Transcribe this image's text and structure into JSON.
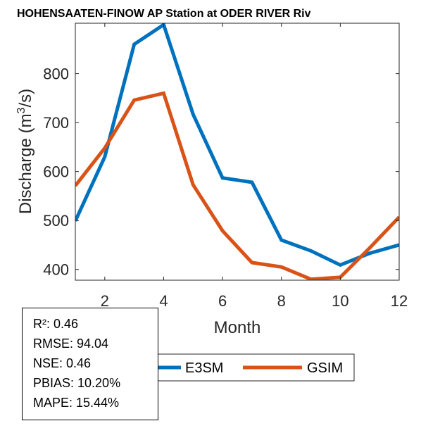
{
  "chart_data": {
    "type": "line",
    "title": "HOHENSAATEN-FINOW AP  Station at  ODER RIVER  Riv",
    "xlabel": "Month",
    "ylabel": "Discharge (m³/s)",
    "ylabel_parts": {
      "pre": "Discharge (m",
      "sup": "3",
      "post": "/s)"
    },
    "xlim": [
      1,
      12
    ],
    "ylim": [
      378,
      903
    ],
    "x": [
      1,
      2,
      3,
      4,
      5,
      6,
      7,
      8,
      9,
      10,
      11,
      12
    ],
    "xticks": [
      2,
      4,
      6,
      8,
      10,
      12
    ],
    "yticks": [
      400,
      500,
      600,
      700,
      800
    ],
    "grid": false,
    "legend_position": "bottom-center",
    "series": [
      {
        "name": "E3SM",
        "color": "#0072BD",
        "values": [
          499,
          630,
          860,
          900,
          717,
          587,
          578,
          460,
          438,
          409,
          433,
          450
        ]
      },
      {
        "name": "GSIM",
        "color": "#D95319",
        "values": [
          571,
          648,
          746,
          760,
          573,
          479,
          414,
          405,
          380,
          384,
          444,
          507
        ]
      }
    ]
  },
  "stats": [
    {
      "label": "R²: 0.46"
    },
    {
      "label": "RMSE: 94.04"
    },
    {
      "label": "NSE: 0.46"
    },
    {
      "label": "PBIAS: 10.20%"
    },
    {
      "label": "MAPE: 15.44%"
    }
  ]
}
